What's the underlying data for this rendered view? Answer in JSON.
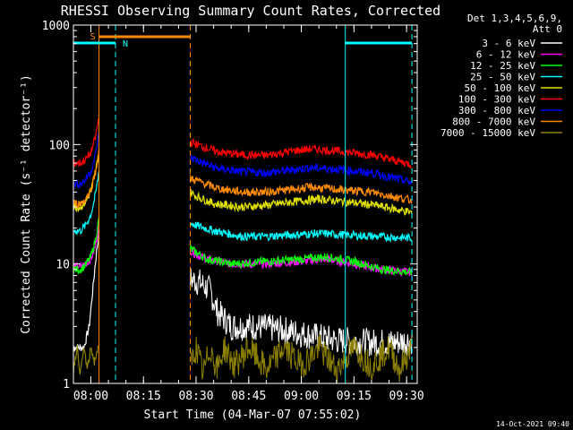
{
  "chart_data": {
    "type": "line",
    "title": "RHESSI Observing Summary Count Rates, Corrected",
    "xlabel": "Start Time (04-Mar-07 07:55:02)",
    "ylabel": "Corrected Count Rate (s⁻¹ detector⁻¹)",
    "yscale": "log",
    "ylim": [
      1,
      1000
    ],
    "xlim_minutes_after_start": [
      0,
      98
    ],
    "x_ticks": [
      {
        "label": "08:00",
        "min": 4.97
      },
      {
        "label": "08:15",
        "min": 19.97
      },
      {
        "label": "08:30",
        "min": 34.97
      },
      {
        "label": "08:45",
        "min": 49.97
      },
      {
        "label": "09:00",
        "min": 64.97
      },
      {
        "label": "09:15",
        "min": 79.97
      },
      {
        "label": "09:30",
        "min": 94.97
      }
    ],
    "y_ticks": [
      {
        "label": "1",
        "value": 1
      },
      {
        "label": "10",
        "value": 10
      },
      {
        "label": "100",
        "value": 100
      },
      {
        "label": "1000",
        "value": 1000
      }
    ],
    "legend": {
      "position": "right",
      "header": [
        "Det 1,3,4,5,6,9,",
        "Att 0"
      ],
      "entries": [
        {
          "label": "3 - 6 keV",
          "color": "#ffffff"
        },
        {
          "label": "6 - 12 keV",
          "color": "#ff00ff"
        },
        {
          "label": "12 - 25 keV",
          "color": "#00ff00"
        },
        {
          "label": "25 - 50 keV",
          "color": "#00ffff"
        },
        {
          "label": "50 - 100 keV",
          "color": "#e0e000"
        },
        {
          "label": "100 - 300 keV",
          "color": "#ff0000"
        },
        {
          "label": "300 - 800 keV",
          "color": "#0000ff"
        },
        {
          "label": "800 - 7000 keV",
          "color": "#ff8c00"
        },
        {
          "label": "7000 - 15000 keV",
          "color": "#8b8000"
        }
      ]
    },
    "series": [
      {
        "name": "3 - 6 keV",
        "color": "#ffffff",
        "segments": [
          {
            "points": [
              [
                0,
                2
              ],
              [
                3,
                2
              ],
              [
                4.5,
                3
              ],
              [
                5.5,
                6
              ],
              [
                6.5,
                12
              ],
              [
                7.3,
                18
              ]
            ]
          },
          {
            "points": [
              [
                33.3,
                7.5
              ],
              [
                36,
                7
              ],
              [
                39,
                6
              ],
              [
                41,
                4
              ],
              [
                45,
                3
              ],
              [
                52,
                3
              ],
              [
                60,
                2.8
              ],
              [
                68,
                2.5
              ],
              [
                75,
                2.3
              ],
              [
                85,
                2.2
              ],
              [
                91,
                2.2
              ],
              [
                96.5,
                2.3
              ]
            ]
          }
        ]
      },
      {
        "name": "6 - 12 keV",
        "color": "#ff00ff",
        "segments": [
          {
            "points": [
              [
                0,
                9.5
              ],
              [
                2,
                9.5
              ],
              [
                3.5,
                10
              ],
              [
                5,
                11
              ],
              [
                6.3,
                14
              ],
              [
                7.3,
                22
              ]
            ]
          },
          {
            "points": [
              [
                33.3,
                13
              ],
              [
                35,
                12
              ],
              [
                38,
                11
              ],
              [
                45,
                10
              ],
              [
                55,
                10
              ],
              [
                65,
                10.5
              ],
              [
                72,
                11
              ],
              [
                80,
                10
              ],
              [
                88,
                9
              ],
              [
                96.5,
                8.5
              ]
            ]
          }
        ]
      },
      {
        "name": "12 - 25 keV",
        "color": "#00ff00",
        "segments": [
          {
            "points": [
              [
                0,
                9
              ],
              [
                2,
                9
              ],
              [
                3.5,
                9.8
              ],
              [
                5,
                11.5
              ],
              [
                6.3,
                16
              ],
              [
                7.3,
                24
              ]
            ]
          },
          {
            "points": [
              [
                33.3,
                13.5
              ],
              [
                35,
                12.5
              ],
              [
                38,
                11
              ],
              [
                45,
                10
              ],
              [
                55,
                10.5
              ],
              [
                65,
                11
              ],
              [
                72,
                11.5
              ],
              [
                80,
                10.5
              ],
              [
                88,
                9
              ],
              [
                96.5,
                8.5
              ]
            ]
          }
        ]
      },
      {
        "name": "25 - 50 keV",
        "color": "#00ffff",
        "segments": [
          {
            "points": [
              [
                0,
                19
              ],
              [
                2,
                19
              ],
              [
                3.5,
                21
              ],
              [
                5,
                26
              ],
              [
                6.3,
                38
              ],
              [
                7.3,
                60
              ]
            ]
          },
          {
            "points": [
              [
                33.3,
                22
              ],
              [
                35,
                21
              ],
              [
                40,
                19
              ],
              [
                48,
                17
              ],
              [
                55,
                17
              ],
              [
                62,
                17.5
              ],
              [
                70,
                18
              ],
              [
                78,
                17.5
              ],
              [
                86,
                17
              ],
              [
                96.5,
                16.5
              ]
            ]
          }
        ]
      },
      {
        "name": "50 - 100 keV",
        "color": "#e0e000",
        "segments": [
          {
            "points": [
              [
                0,
                30
              ],
              [
                2,
                30
              ],
              [
                3.5,
                33
              ],
              [
                5,
                41
              ],
              [
                6.3,
                58
              ],
              [
                7.3,
                88
              ]
            ]
          },
          {
            "points": [
              [
                33.3,
                40
              ],
              [
                35,
                37
              ],
              [
                40,
                32
              ],
              [
                48,
                30
              ],
              [
                55,
                31
              ],
              [
                62,
                33
              ],
              [
                70,
                35
              ],
              [
                78,
                33
              ],
              [
                86,
                31
              ],
              [
                96.5,
                27
              ]
            ]
          }
        ]
      },
      {
        "name": "100 - 300 keV",
        "color": "#ff0000",
        "segments": [
          {
            "points": [
              [
                0,
                70
              ],
              [
                2,
                70
              ],
              [
                3.5,
                75
              ],
              [
                5,
                86
              ],
              [
                6.3,
                115
              ],
              [
                7.3,
                170
              ]
            ]
          },
          {
            "points": [
              [
                33.3,
                105
              ],
              [
                36,
                98
              ],
              [
                41,
                87
              ],
              [
                48,
                82
              ],
              [
                55,
                81
              ],
              [
                62,
                88
              ],
              [
                68,
                92
              ],
              [
                75,
                88
              ],
              [
                85,
                82
              ],
              [
                96.5,
                68
              ]
            ]
          }
        ]
      },
      {
        "name": "300 - 800 keV",
        "color": "#0000ff",
        "segments": [
          {
            "points": [
              [
                0,
                47
              ],
              [
                2,
                47
              ],
              [
                3.5,
                51
              ],
              [
                5,
                60
              ],
              [
                6.3,
                82
              ],
              [
                7.3,
                125
              ]
            ]
          },
          {
            "points": [
              [
                33.3,
                78
              ],
              [
                36,
                72
              ],
              [
                41,
                63
              ],
              [
                48,
                59
              ],
              [
                55,
                58
              ],
              [
                62,
                61
              ],
              [
                68,
                64
              ],
              [
                75,
                62
              ],
              [
                85,
                58
              ],
              [
                96.5,
                48
              ]
            ]
          }
        ]
      },
      {
        "name": "800 - 7000 keV",
        "color": "#ff8c00",
        "segments": [
          {
            "points": [
              [
                0,
                32
              ],
              [
                2,
                32
              ],
              [
                3.5,
                35
              ],
              [
                5,
                42
              ],
              [
                6.3,
                60
              ],
              [
                7.3,
                90
              ]
            ]
          },
          {
            "points": [
              [
                33.3,
                52
              ],
              [
                36,
                49
              ],
              [
                41,
                43
              ],
              [
                48,
                40
              ],
              [
                55,
                40
              ],
              [
                62,
                42
              ],
              [
                68,
                44
              ],
              [
                75,
                42
              ],
              [
                85,
                40
              ],
              [
                96.5,
                34
              ]
            ]
          }
        ]
      },
      {
        "name": "7000 - 15000 keV",
        "color": "#8b8000",
        "segments": [
          {
            "points": [
              [
                0,
                1.3
              ],
              [
                1,
                2
              ],
              [
                2,
                1.2
              ],
              [
                3,
                2
              ],
              [
                4,
                1.3
              ],
              [
                5,
                2
              ],
              [
                6,
                1.5
              ],
              [
                7,
                2
              ]
            ]
          },
          {
            "points": [
              [
                33.3,
                1.4
              ],
              [
                35,
                2
              ],
              [
                37,
                1.2
              ],
              [
                39,
                2
              ],
              [
                41,
                1.3
              ],
              [
                43,
                2
              ],
              [
                46,
                1.4
              ],
              [
                50,
                2
              ],
              [
                55,
                1.3
              ],
              [
                60,
                2
              ],
              [
                65,
                1.4
              ],
              [
                70,
                2
              ],
              [
                75,
                1.3
              ],
              [
                80,
                2
              ],
              [
                85,
                1.4
              ],
              [
                90,
                2
              ],
              [
                93,
                1.3
              ],
              [
                96.5,
                2
              ]
            ]
          }
        ]
      }
    ],
    "annotations": [
      {
        "type": "vline",
        "x_min": 7.3,
        "color": "#ff8c00",
        "style": "solid"
      },
      {
        "type": "vline",
        "x_min": 33.3,
        "color": "#ff8c00",
        "style": "dashed"
      },
      {
        "type": "vline",
        "x_min": 12.0,
        "color": "#00ffff",
        "style": "dashed"
      },
      {
        "type": "vline",
        "x_min": 96.5,
        "color": "#00ffff",
        "style": "dashed"
      },
      {
        "type": "vline",
        "x_min": 77.5,
        "color": "#00ffff",
        "style": "solid"
      },
      {
        "type": "bar",
        "label": "S",
        "x0_min": 7.3,
        "x1_min": 33.3,
        "color": "#ff8c00"
      },
      {
        "type": "bar",
        "label": "N",
        "x0_min": 0,
        "x1_min": 12.0,
        "color": "#00ffff"
      },
      {
        "type": "bar",
        "label": "",
        "x0_min": 77.5,
        "x1_min": 96.5,
        "color": "#00ffff"
      }
    ],
    "timestamp": "14-Oct-2021 09:40"
  }
}
